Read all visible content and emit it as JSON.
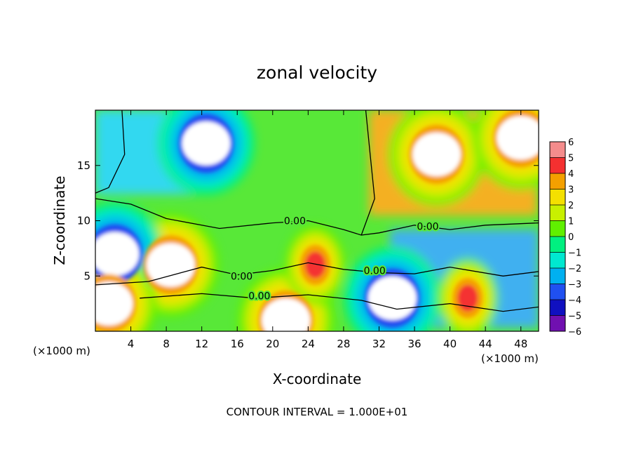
{
  "chart_data": {
    "type": "heatmap",
    "title": "zonal velocity",
    "xlabel": "X-coordinate",
    "ylabel": "Z-coordinate",
    "x_unit_note": "(×1000 m)",
    "y_unit_note": "(×1000 m)",
    "xlim": [
      0,
      50
    ],
    "ylim": [
      0,
      20
    ],
    "x_ticks": [
      4,
      8,
      12,
      16,
      20,
      24,
      28,
      32,
      36,
      40,
      44,
      48
    ],
    "y_ticks": [
      5,
      10,
      15
    ],
    "colorbar": {
      "min": -6,
      "max": 6,
      "ticks": [
        6,
        5,
        4,
        3,
        2,
        1,
        0,
        -1,
        -2,
        -3,
        -4,
        -5,
        -6
      ],
      "colors": [
        "#f48c8c",
        "#f43030",
        "#f4a000",
        "#f4e000",
        "#c8f000",
        "#60f000",
        "#00f080",
        "#00e8d0",
        "#00b0f0",
        "#2050f0",
        "#1010c0",
        "#7010b0"
      ]
    },
    "features": [
      {
        "kind": "min",
        "x": 12.5,
        "z": 17.0,
        "value": -6
      },
      {
        "kind": "max",
        "x": 38.5,
        "z": 16.0,
        "value": 6
      },
      {
        "kind": "max",
        "x": 48.0,
        "z": 17.5,
        "value": 6
      },
      {
        "kind": "max",
        "x": 8.5,
        "z": 6.0,
        "value": 6
      },
      {
        "kind": "min",
        "x": 2.2,
        "z": 7.0,
        "value": -6
      },
      {
        "kind": "min",
        "x": 33.5,
        "z": 3.0,
        "value": -6
      },
      {
        "kind": "max",
        "x": 21.5,
        "z": 1.0,
        "value": 6
      },
      {
        "kind": "max",
        "x": 1.5,
        "z": 2.5,
        "value": 6
      },
      {
        "kind": "max",
        "x": 24.8,
        "z": 6.0,
        "value": 5
      },
      {
        "kind": "max",
        "x": 42.0,
        "z": 3.0,
        "value": 5
      }
    ],
    "contour_labels": [
      {
        "text": "0.00",
        "x": 22.5,
        "z": 10.0
      },
      {
        "text": "0.00",
        "x": 16.5,
        "z": 5.0
      },
      {
        "text": "0.00",
        "x": 18.5,
        "z": 3.2
      },
      {
        "text": "0.00",
        "x": 31.5,
        "z": 5.5
      },
      {
        "text": "0.00",
        "x": 37.5,
        "z": 9.5
      }
    ]
  },
  "footer": "CONTOUR INTERVAL = 1.000E+01"
}
